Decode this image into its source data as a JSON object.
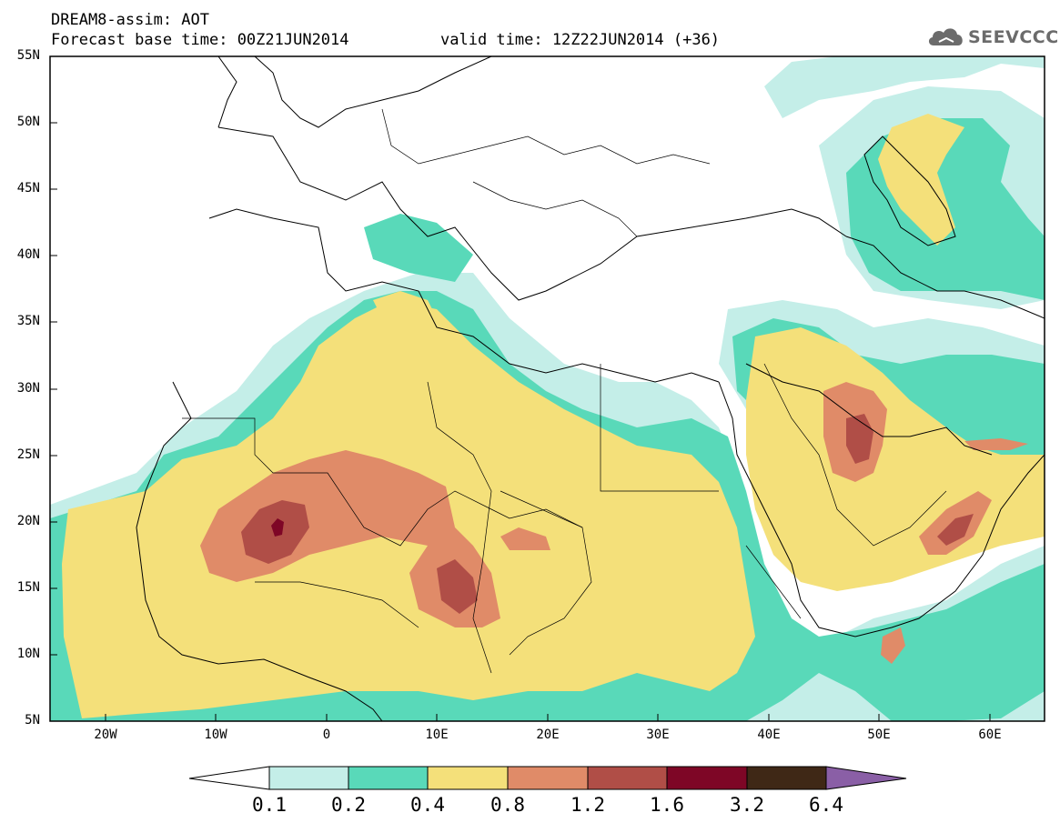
{
  "title": {
    "line1": "DREAM8-assim: AOT",
    "line2": "Forecast base time: 00Z21JUN2014",
    "line3": "valid time: 12Z22JUN2014 (+36)"
  },
  "logo": {
    "text": "SEEVCCC",
    "icon": "cloud-icon"
  },
  "axes": {
    "y_labels": [
      "55N",
      "50N",
      "45N",
      "40N",
      "35N",
      "30N",
      "25N",
      "20N",
      "15N",
      "10N",
      "5N"
    ],
    "x_labels": [
      "20W",
      "10W",
      "0",
      "10E",
      "20E",
      "30E",
      "40E",
      "50E",
      "60E"
    ]
  },
  "map_extent": {
    "lon": [
      -25,
      65
    ],
    "lat": [
      5,
      55
    ]
  },
  "colorbar": {
    "labels": [
      "0.1",
      "0.2",
      "0.4",
      "0.8",
      "1.2",
      "1.6",
      "3.2",
      "6.4"
    ],
    "colors": [
      "#ffffff",
      "#c4eee8",
      "#59d9b9",
      "#f4e07a",
      "#e08b68",
      "#b04e47",
      "#7e0626",
      "#3f2816",
      "#8a5fa6"
    ]
  }
}
